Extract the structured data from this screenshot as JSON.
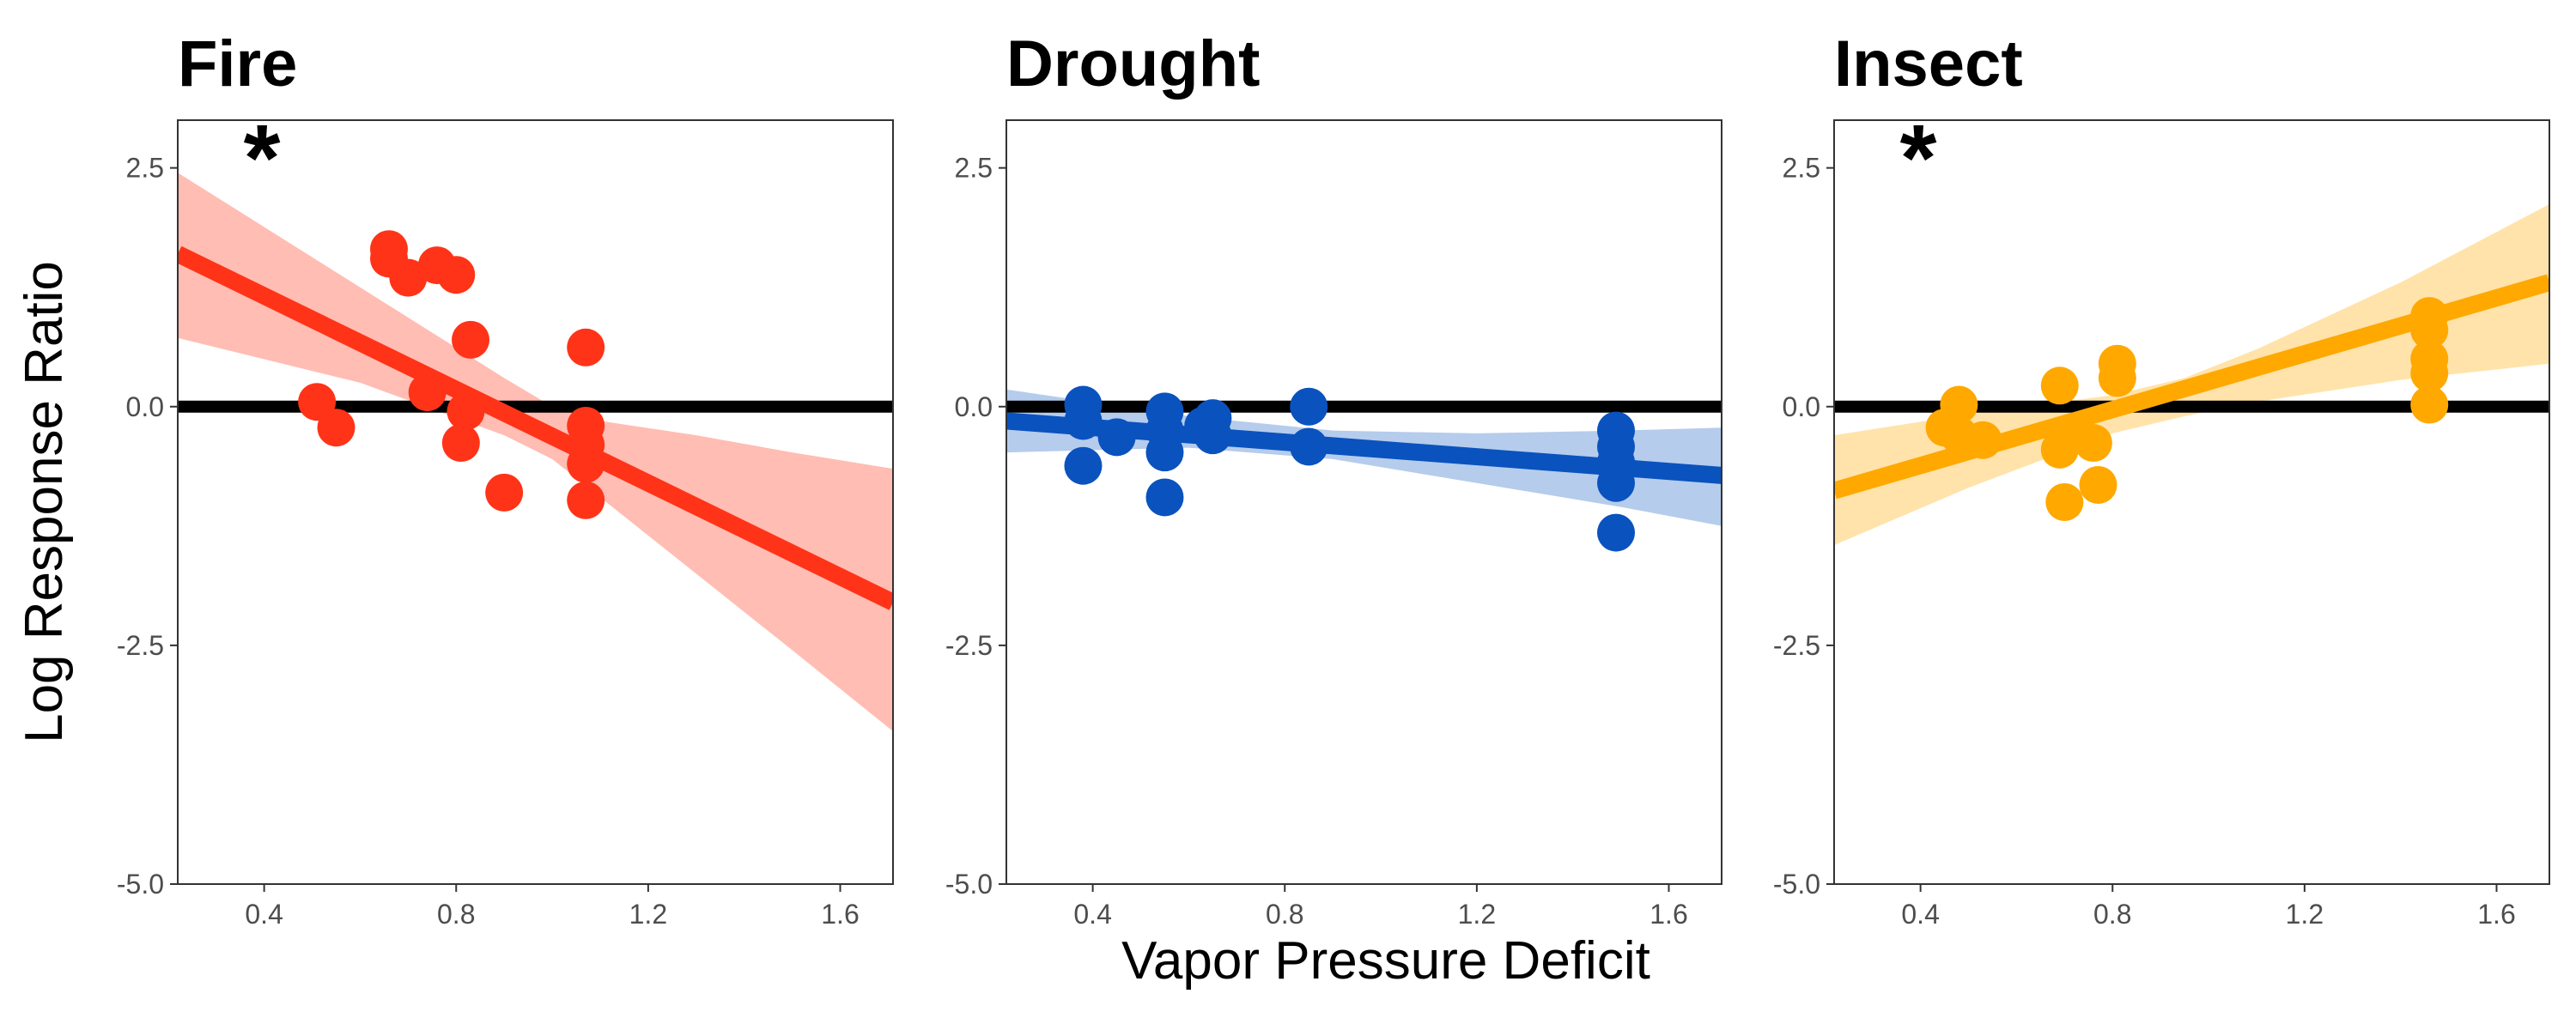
{
  "figure": {
    "ylabel": "Log Response Ratio",
    "xlabel": "Vapor Pressure Deficit"
  },
  "chart_data": [
    {
      "type": "scatter",
      "title": "Fire",
      "annotation": "*",
      "color": "#FF3318",
      "band_color": "#FFBDB3",
      "xlim": [
        0.22,
        1.71
      ],
      "ylim": [
        -5.0,
        3.0
      ],
      "xticks": [
        "0.4",
        "0.8",
        "1.2",
        "1.6"
      ],
      "yticks": [
        "2.5",
        "0.0",
        "-2.5",
        "-5.0"
      ],
      "reference_line": 0.0,
      "fit": {
        "x": [
          0.22,
          1.71
        ],
        "y": [
          1.6,
          -2.05
        ]
      },
      "ci_band": {
        "x": [
          0.22,
          0.6,
          0.9,
          1.0,
          1.1,
          1.3,
          1.5,
          1.71
        ],
        "upper": [
          2.45,
          1.25,
          0.3,
          0.0,
          -0.15,
          -0.3,
          -0.48,
          -0.65
        ],
        "lower": [
          0.72,
          0.25,
          -0.3,
          -0.55,
          -0.95,
          -1.75,
          -2.55,
          -3.4
        ]
      },
      "points": [
        {
          "x": 0.51,
          "y": 0.05
        },
        {
          "x": 0.55,
          "y": -0.22
        },
        {
          "x": 0.66,
          "y": 1.65
        },
        {
          "x": 0.66,
          "y": 1.55
        },
        {
          "x": 0.7,
          "y": 1.35
        },
        {
          "x": 0.74,
          "y": 0.15
        },
        {
          "x": 0.76,
          "y": 1.48
        },
        {
          "x": 0.8,
          "y": 1.38
        },
        {
          "x": 0.81,
          "y": -0.38
        },
        {
          "x": 0.82,
          "y": -0.05
        },
        {
          "x": 0.83,
          "y": 0.7
        },
        {
          "x": 0.9,
          "y": -0.9
        },
        {
          "x": 1.07,
          "y": 0.62
        },
        {
          "x": 1.07,
          "y": -0.2
        },
        {
          "x": 1.07,
          "y": -0.4
        },
        {
          "x": 1.07,
          "y": -0.6
        },
        {
          "x": 1.07,
          "y": -0.98
        }
      ]
    },
    {
      "type": "scatter",
      "title": "Drought",
      "annotation": "",
      "color": "#0A52BE",
      "band_color": "#B5CCEC",
      "xlim": [
        0.22,
        1.71
      ],
      "ylim": [
        -5.0,
        3.0
      ],
      "xticks": [
        "0.4",
        "0.8",
        "1.2",
        "1.6"
      ],
      "yticks": [
        "2.5",
        "0.0",
        "-2.5",
        "-5.0"
      ],
      "reference_line": 0.0,
      "fit": {
        "x": [
          0.22,
          1.71
        ],
        "y": [
          -0.15,
          -0.72
        ]
      },
      "ci_band": {
        "x": [
          0.22,
          0.6,
          0.9,
          1.2,
          1.5,
          1.71
        ],
        "upper": [
          0.18,
          -0.1,
          -0.25,
          -0.28,
          -0.25,
          -0.22
        ],
        "lower": [
          -0.48,
          -0.43,
          -0.55,
          -0.8,
          -1.05,
          -1.25
        ]
      },
      "points": [
        {
          "x": 0.38,
          "y": 0.02
        },
        {
          "x": 0.38,
          "y": -0.15
        },
        {
          "x": 0.38,
          "y": -0.62
        },
        {
          "x": 0.45,
          "y": -0.32
        },
        {
          "x": 0.55,
          "y": -0.05
        },
        {
          "x": 0.55,
          "y": -0.25
        },
        {
          "x": 0.55,
          "y": -0.48
        },
        {
          "x": 0.55,
          "y": -0.95
        },
        {
          "x": 0.63,
          "y": -0.2
        },
        {
          "x": 0.65,
          "y": -0.12
        },
        {
          "x": 0.65,
          "y": -0.3
        },
        {
          "x": 0.85,
          "y": 0.0
        },
        {
          "x": 0.85,
          "y": -0.42
        },
        {
          "x": 1.49,
          "y": -0.25
        },
        {
          "x": 1.49,
          "y": -0.42
        },
        {
          "x": 1.49,
          "y": -0.58
        },
        {
          "x": 1.49,
          "y": -0.8
        },
        {
          "x": 1.49,
          "y": -1.32
        }
      ]
    },
    {
      "type": "scatter",
      "title": "Insect",
      "annotation": "*",
      "color": "#FFA800",
      "band_color": "#FFE3AA",
      "xlim": [
        0.22,
        1.71
      ],
      "ylim": [
        -5.0,
        3.0
      ],
      "xticks": [
        "0.4",
        "0.8",
        "1.2",
        "1.6"
      ],
      "yticks": [
        "2.5",
        "0.0",
        "-2.5",
        "-5.0"
      ],
      "reference_line": 0.0,
      "fit": {
        "x": [
          0.22,
          1.71
        ],
        "y": [
          -0.88,
          1.3
        ]
      },
      "ci_band": {
        "x": [
          0.22,
          0.5,
          0.8,
          0.95,
          1.1,
          1.4,
          1.71
        ],
        "upper": [
          -0.3,
          -0.08,
          0.12,
          0.3,
          0.6,
          1.3,
          2.12
        ],
        "lower": [
          -1.45,
          -0.85,
          -0.28,
          -0.1,
          0.05,
          0.28,
          0.45
        ]
      },
      "points": [
        {
          "x": 0.45,
          "y": -0.22
        },
        {
          "x": 0.48,
          "y": 0.02
        },
        {
          "x": 0.48,
          "y": -0.3
        },
        {
          "x": 0.53,
          "y": -0.35
        },
        {
          "x": 0.69,
          "y": 0.22
        },
        {
          "x": 0.69,
          "y": -0.45
        },
        {
          "x": 0.7,
          "y": -1.0
        },
        {
          "x": 0.72,
          "y": -0.3
        },
        {
          "x": 0.76,
          "y": -0.38
        },
        {
          "x": 0.77,
          "y": -0.82
        },
        {
          "x": 0.81,
          "y": 0.45
        },
        {
          "x": 0.81,
          "y": 0.3
        },
        {
          "x": 1.46,
          "y": 0.95
        },
        {
          "x": 1.46,
          "y": 0.8
        },
        {
          "x": 1.46,
          "y": 0.5
        },
        {
          "x": 1.46,
          "y": 0.35
        },
        {
          "x": 1.46,
          "y": 0.02
        }
      ]
    }
  ]
}
